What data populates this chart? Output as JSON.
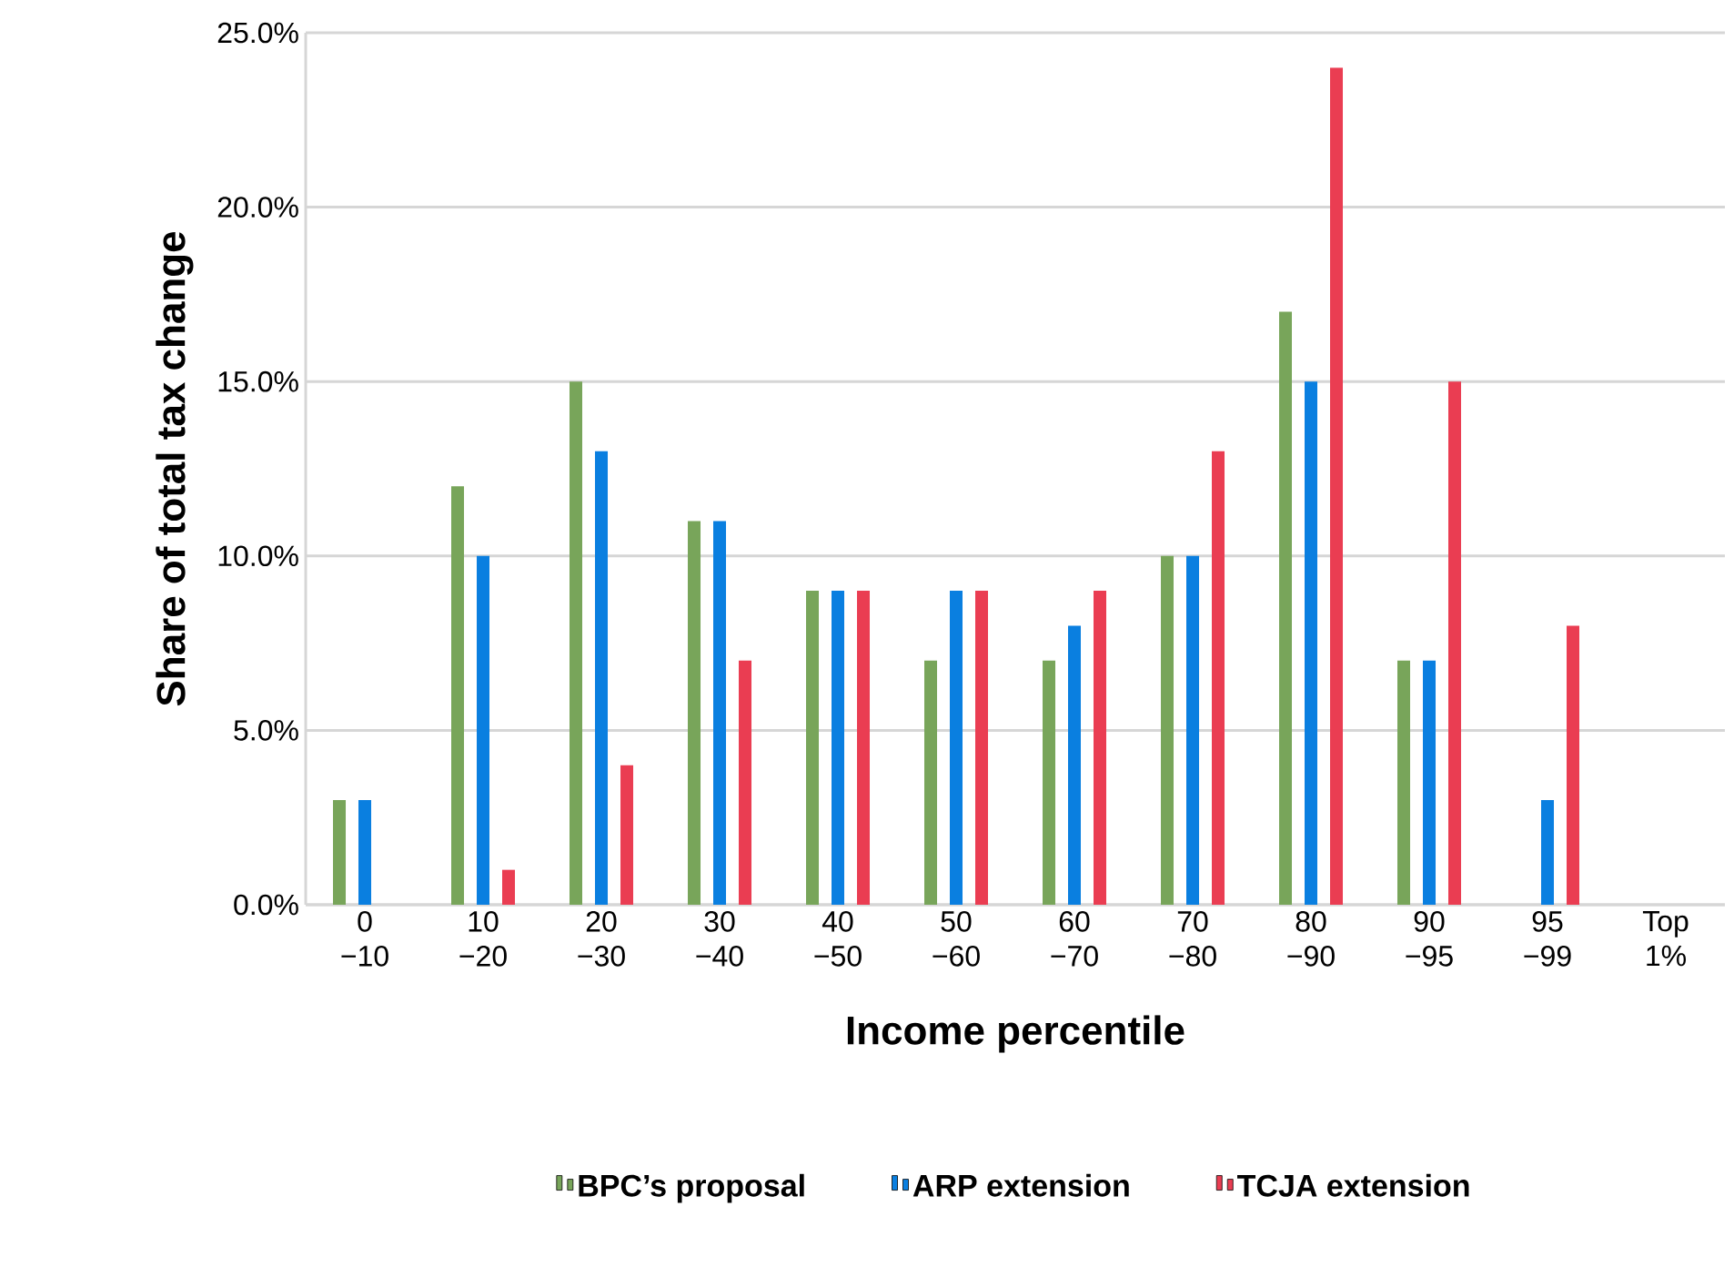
{
  "chart_data": {
    "type": "bar",
    "xlabel": "Income percentile",
    "ylabel": "Share of total tax change",
    "categories": [
      "0 −10",
      "10 −20",
      "20 −30",
      "30 −40",
      "40 −50",
      "50 −60",
      "60 −70",
      "70 −80",
      "80 −90",
      "90 −95",
      "95 −99",
      "Top 1%"
    ],
    "series": [
      {
        "name": "BPC’s proposal",
        "color": "#78a55a",
        "values": [
          3,
          12,
          15,
          11,
          9,
          7,
          7,
          10,
          17,
          7,
          0,
          0
        ]
      },
      {
        "name": "ARP extension",
        "color": "#0a7fe0",
        "values": [
          3,
          10,
          13,
          11,
          9,
          9,
          8,
          10,
          15,
          7,
          3,
          0
        ]
      },
      {
        "name": "TCJA extension",
        "color": "#ea3d52",
        "values": [
          0,
          1,
          4,
          7,
          9,
          9,
          9,
          13,
          24,
          15,
          8,
          0
        ]
      }
    ],
    "ylim": [
      0,
      25
    ],
    "yticks": [
      {
        "value": 0,
        "label": "0.0%"
      },
      {
        "value": 5,
        "label": "5.0%"
      },
      {
        "value": 10,
        "label": "10.0%"
      },
      {
        "value": 15,
        "label": "15.0%"
      },
      {
        "value": 20,
        "label": "20.0%"
      },
      {
        "value": 25,
        "label": "25.0%"
      }
    ],
    "grid": "y",
    "legend": "bottom"
  }
}
